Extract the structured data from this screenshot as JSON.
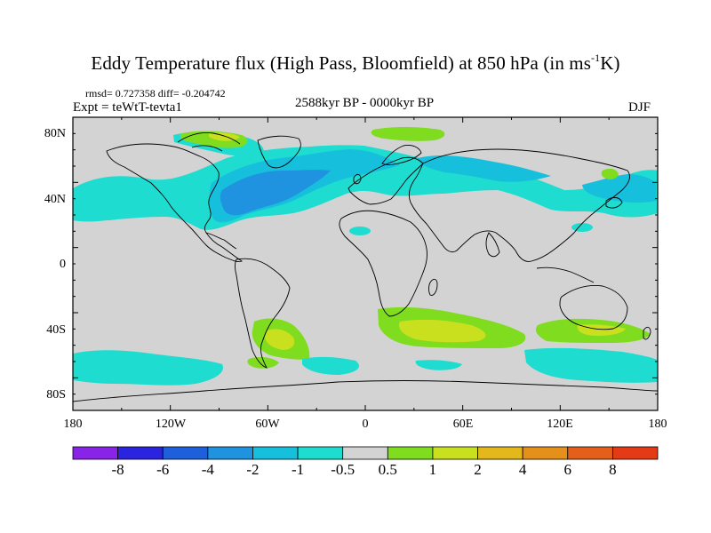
{
  "title_main": "Eddy Temperature flux (High Pass, Bloomfield) at 850 hPa (in ms",
  "title_sup": "-1",
  "title_end": "K)",
  "stats": "rmsd= 0.727358 diff= -0.204742",
  "expt": "Expt = teWtT-tevta1",
  "period": "2588kyr BP - 0000kyr BP",
  "season": "DJF",
  "lat_labels": [
    "80N",
    "40N",
    "0",
    "40S",
    "80S"
  ],
  "lon_labels": [
    "180",
    "120W",
    "60W",
    "0",
    "60E",
    "120E",
    "180"
  ],
  "colorbar": {
    "labels": [
      "-8",
      "-6",
      "-4",
      "-2",
      "-1",
      "-0.5",
      "0.5",
      "1",
      "2",
      "4",
      "6",
      "8"
    ],
    "colors": [
      "#8a23e8",
      "#2a23e0",
      "#1e5fdc",
      "#1f93df",
      "#16c0dc",
      "#1fdcd0",
      "#d3d3d3",
      "#7fdc1e",
      "#c8e01e",
      "#e4b81a",
      "#e4901a",
      "#e4601a",
      "#e43a16"
    ]
  },
  "colors": {
    "background": "#d3d3d3",
    "coast": "#000000"
  }
}
